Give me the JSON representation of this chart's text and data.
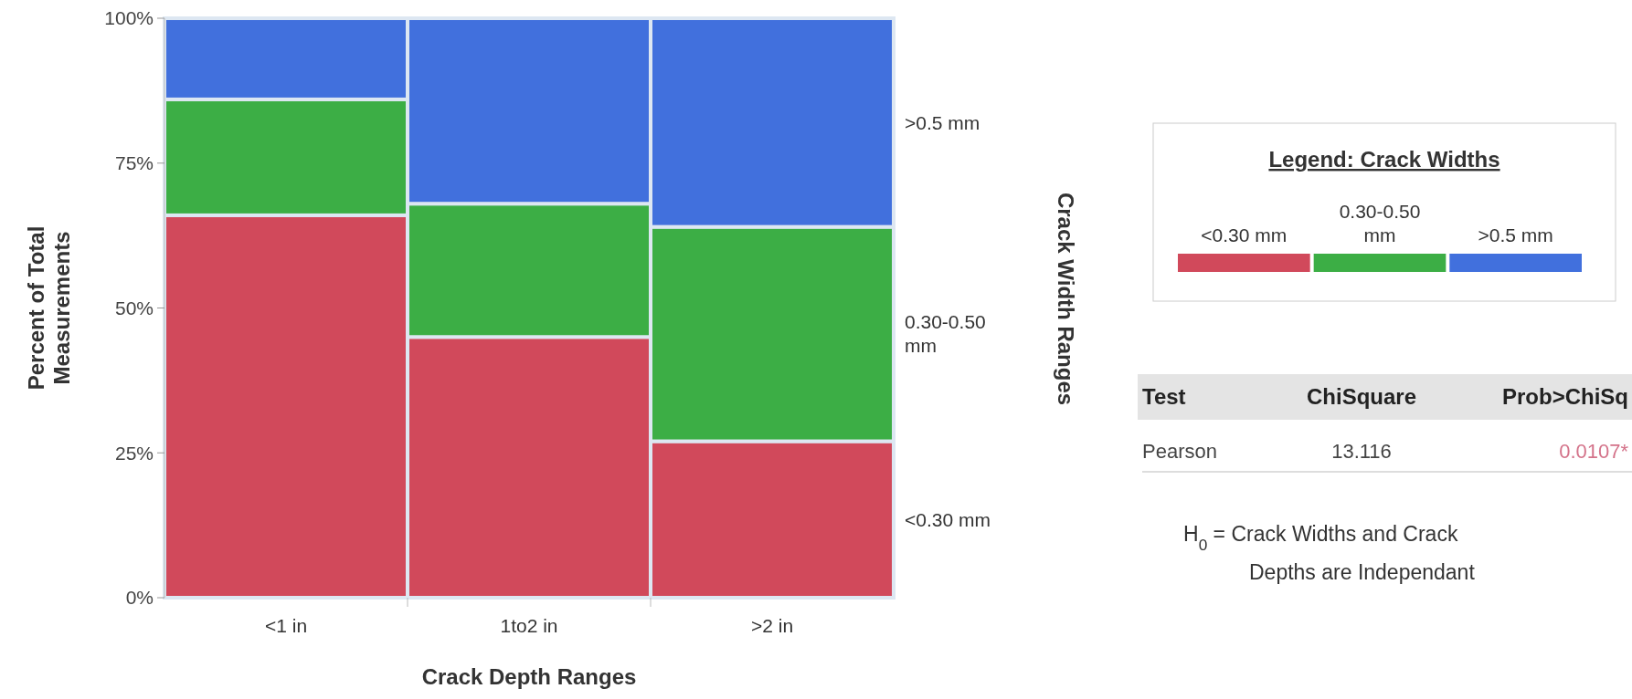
{
  "chart_data": {
    "type": "bar",
    "stacked": true,
    "categories": [
      "<1 in",
      "1to2 in",
      ">2 in"
    ],
    "series": [
      {
        "name": "<0.30 mm",
        "color": "#d1495b",
        "values": [
          66,
          45,
          27
        ]
      },
      {
        "name": "0.30-0.50 mm",
        "color": "#3cae45",
        "values": [
          20,
          23,
          37
        ]
      },
      {
        "name": ">0.5 mm",
        "color": "#4170dd",
        "values": [
          14,
          32,
          36
        ]
      }
    ],
    "ylim": [
      0,
      100
    ],
    "yticks": [
      {
        "value": 0,
        "label": "0%"
      },
      {
        "value": 25,
        "label": "25%"
      },
      {
        "value": 50,
        "label": "50%"
      },
      {
        "value": 75,
        "label": "75%"
      },
      {
        "value": 100,
        "label": "100%"
      }
    ],
    "xlabel": "Crack Depth Ranges",
    "ylabel": "Percent of Total Measurements",
    "legend_title": "Legend: Crack Widths",
    "legend": "right",
    "annotations": [
      "Test",
      "ChiSquare",
      "Prob>ChiSq",
      "Pearson",
      "13.116",
      "0.0107*",
      "H$_{0}$ = Crack Widths and Crack Depths are Independant",
      "Crack Width Ranges"
    ]
  }
}
